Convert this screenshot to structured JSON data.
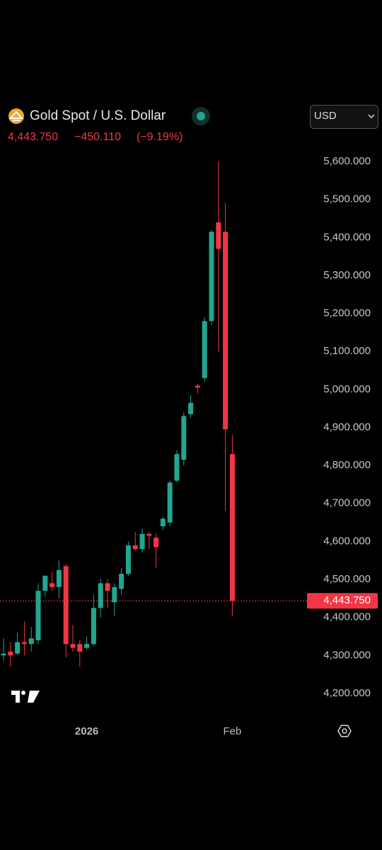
{
  "header": {
    "title": "Gold Spot / U.S. Dollar",
    "change": "−450.110",
    "change_percent": "(−9.19%)",
    "currency": "USD"
  },
  "chart_data": {
    "type": "candlestick",
    "categories": [
      null,
      null,
      null,
      null,
      null,
      null,
      null,
      null,
      null,
      null,
      null,
      null,
      "2026",
      null,
      null,
      null,
      null,
      null,
      null,
      null,
      null,
      null,
      null,
      null,
      null,
      null,
      null,
      null,
      null,
      null,
      null,
      null,
      null,
      "Feb"
    ],
    "open": [
      4300,
      4310,
      4305,
      4335,
      4330,
      4340,
      4470,
      4490,
      4480,
      4535,
      4330,
      4330,
      4320,
      4330,
      4425,
      4490,
      4440,
      4475,
      4515,
      4590,
      4580,
      4620,
      4610,
      4640,
      4650,
      4760,
      4815,
      4935,
      5010,
      5030,
      5180,
      5440,
      5415,
      4830
    ],
    "high": [
      4345,
      4335,
      4360,
      4390,
      4375,
      4490,
      4510,
      4520,
      4550,
      4540,
      4380,
      4340,
      4350,
      4460,
      4500,
      4500,
      4490,
      4530,
      4600,
      4625,
      4635,
      4625,
      4620,
      4665,
      4760,
      4840,
      4940,
      4985,
      5015,
      5190,
      5420,
      5600,
      5490,
      4880
    ],
    "low": [
      4285,
      4270,
      4300,
      4300,
      4310,
      4330,
      4455,
      4470,
      4450,
      4295,
      4310,
      4270,
      4315,
      4325,
      4400,
      4425,
      4405,
      4460,
      4510,
      4575,
      4570,
      4580,
      4530,
      4630,
      4640,
      4755,
      4800,
      4925,
      4990,
      5020,
      5170,
      5100,
      4680,
      4405
    ],
    "close": [
      4305,
      4300,
      4335,
      4330,
      4345,
      4470,
      4510,
      4480,
      4525,
      4330,
      4320,
      4310,
      4330,
      4425,
      4490,
      4470,
      4480,
      4515,
      4590,
      4580,
      4620,
      4615,
      4585,
      4660,
      4755,
      4830,
      4930,
      4965,
      5005,
      5180,
      5415,
      5370,
      4895,
      4443.75
    ],
    "up_color": "#22a68f",
    "down_color": "#f23645",
    "ylim": [
      4150,
      5650
    ],
    "yticks": [
      {
        "value": 4200,
        "label": "4,200.000"
      },
      {
        "value": 4300,
        "label": "4,300.000"
      },
      {
        "value": 4400,
        "label": "4,400.000"
      },
      {
        "value": 4500,
        "label": "4,500.000"
      },
      {
        "value": 4600,
        "label": "4,600.000"
      },
      {
        "value": 4700,
        "label": "4,700.000"
      },
      {
        "value": 4800,
        "label": "4,800.000"
      },
      {
        "value": 4900,
        "label": "4,900.000"
      },
      {
        "value": 5000,
        "label": "5,000.000"
      },
      {
        "value": 5100,
        "label": "5,100.000"
      },
      {
        "value": 5200,
        "label": "5,200.000"
      },
      {
        "value": 5300,
        "label": "5,300.000"
      },
      {
        "value": 5400,
        "label": "5,400.000"
      },
      {
        "value": 5500,
        "label": "5,500.000"
      },
      {
        "value": 5600,
        "label": "5,600.000"
      }
    ],
    "last_price": {
      "value": 4443.75,
      "label": "4,443.750"
    }
  }
}
